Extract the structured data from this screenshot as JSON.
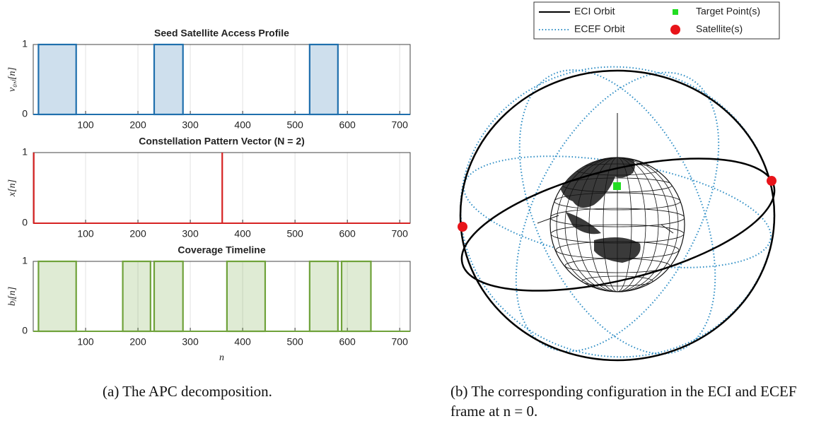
{
  "chart_data": [
    {
      "type": "pulse",
      "title": "Seed Satellite Access Profile",
      "y_label": "v₀,ⱼ[n]",
      "color": "#1f6fad",
      "pulses": [
        {
          "start": 10,
          "end": 82
        },
        {
          "start": 231,
          "end": 286
        },
        {
          "start": 528,
          "end": 582
        }
      ],
      "level": 1,
      "xlim": [
        0,
        720
      ],
      "ylim": [
        0,
        1
      ],
      "xticks": [
        100,
        200,
        300,
        400,
        500,
        600,
        700
      ],
      "yticks": [
        0,
        1
      ],
      "grid": true
    },
    {
      "type": "stem",
      "title": "Constellation Pattern Vector (N = 2)",
      "y_label": "x[n]",
      "color": "#d62222",
      "impulses": [
        1,
        361
      ],
      "level": 1,
      "xlim": [
        0,
        720
      ],
      "ylim": [
        0,
        1
      ],
      "xticks": [
        100,
        200,
        300,
        400,
        500,
        600,
        700
      ],
      "yticks": [
        0,
        1
      ],
      "grid": true
    },
    {
      "type": "pulse",
      "title": "Coverage Timeline",
      "y_label": "bⱼ[n]",
      "x_label": "n",
      "color": "#6fa23a",
      "pulses": [
        {
          "start": 10,
          "end": 82
        },
        {
          "start": 171,
          "end": 224
        },
        {
          "start": 231,
          "end": 286
        },
        {
          "start": 370,
          "end": 443
        },
        {
          "start": 528,
          "end": 582
        },
        {
          "start": 589,
          "end": 645
        }
      ],
      "level": 1,
      "xlim": [
        0,
        720
      ],
      "ylim": [
        0,
        1
      ],
      "xticks": [
        100,
        200,
        300,
        400,
        500,
        600,
        700
      ],
      "yticks": [
        0,
        1
      ],
      "grid": true
    }
  ],
  "diagram": {
    "legend": [
      "ECI Orbit",
      "Target Point(s)",
      "ECEF Orbit",
      "Satellite(s)"
    ]
  },
  "captions": [
    "(a) The APC decomposition.",
    "(b) The corresponding configuration in the ECI and ECEF frame at n = 0."
  ]
}
